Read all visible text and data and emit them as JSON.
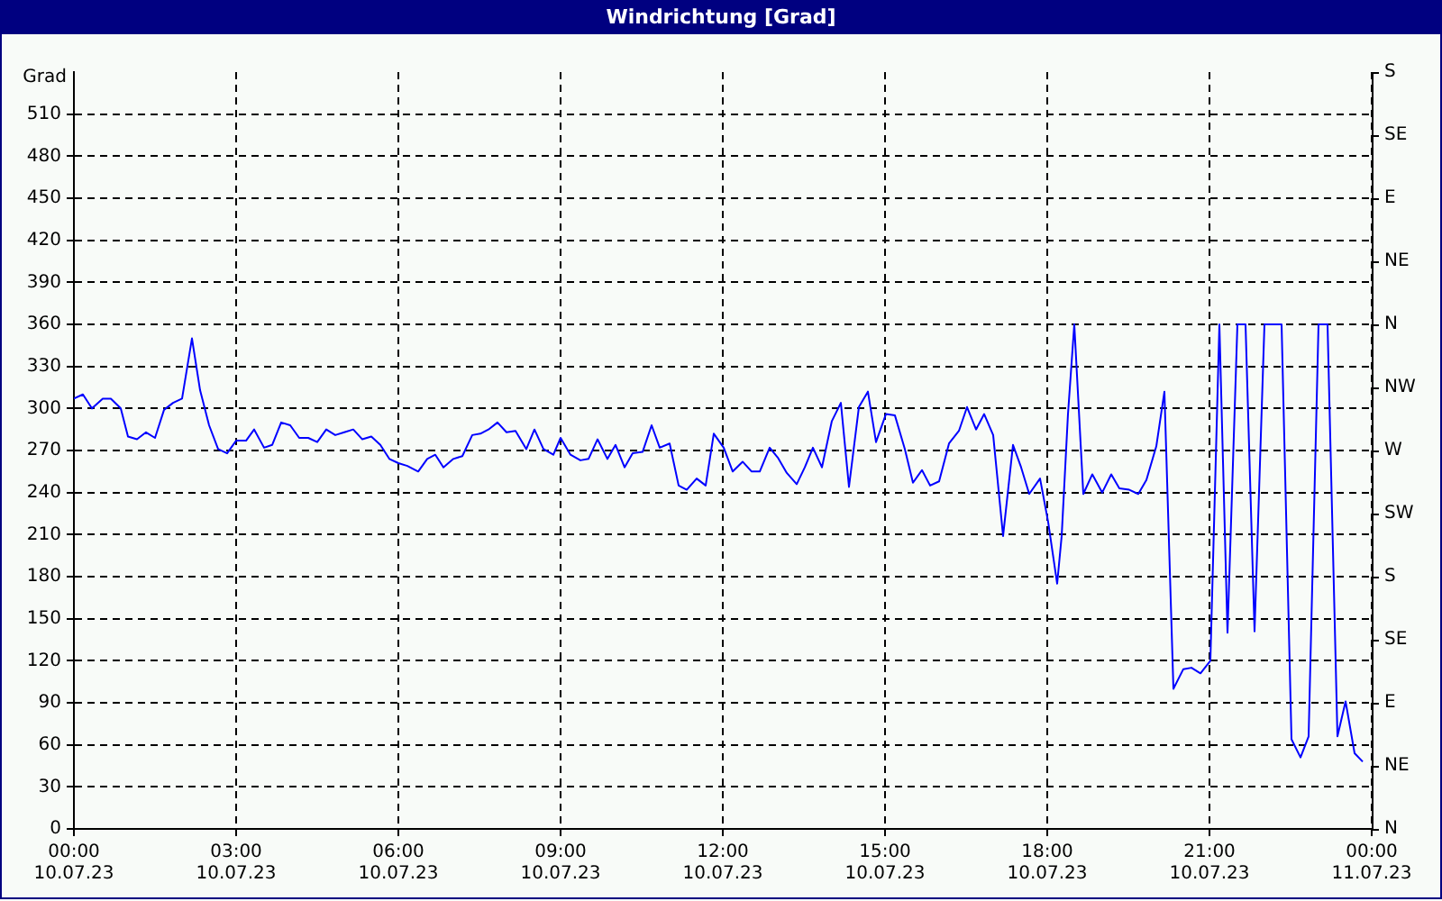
{
  "chart_data": {
    "type": "line",
    "title": "Windrichtung [Grad]",
    "ylabel": "Grad",
    "x": [
      "--07-10T00:00",
      "--07-10T00:10",
      "--07-10T00:20",
      "--07-10T00:32",
      "--07-10T00:41",
      "--07-10T00:52",
      "--07-10T01:00",
      "--07-10T01:10",
      "--07-10T01:20",
      "--07-10T01:30",
      "--07-10T01:40",
      "--07-10T01:50",
      "--07-10T02:00",
      "--07-10T02:11",
      "--07-10T02:20",
      "--07-10T02:30",
      "--07-10T02:40",
      "--07-10T02:50",
      "--07-10T03:00",
      "--07-10T03:11",
      "--07-10T03:20",
      "--07-10T03:31",
      "--07-10T03:40",
      "--07-10T03:50",
      "--07-10T04:00",
      "--07-10T04:10",
      "--07-10T04:20",
      "--07-10T04:30",
      "--07-10T04:40",
      "--07-10T04:50",
      "--07-10T05:00",
      "--07-10T05:10",
      "--07-10T05:20",
      "--07-10T05:30",
      "--07-10T05:40",
      "--07-10T05:50",
      "--07-10T06:00",
      "--07-10T06:10",
      "--07-10T06:22",
      "--07-10T06:32",
      "--07-10T06:41",
      "--07-10T06:50",
      "--07-10T07:01",
      "--07-10T07:11",
      "--07-10T07:22",
      "--07-10T07:31",
      "--07-10T07:40",
      "--07-10T07:50",
      "--07-10T08:00",
      "--07-10T08:10",
      "--07-10T08:22",
      "--07-10T08:31",
      "--07-10T08:41",
      "--07-10T08:52",
      "--07-10T09:00",
      "--07-10T09:11",
      "--07-10T09:22",
      "--07-10T09:31",
      "--07-10T09:41",
      "--07-10T09:52",
      "--07-10T10:01",
      "--07-10T10:11",
      "--07-10T10:20",
      "--07-10T10:31",
      "--07-10T10:41",
      "--07-10T10:50",
      "--07-10T11:01",
      "--07-10T11:11",
      "--07-10T11:20",
      "--07-10T11:31",
      "--07-10T11:41",
      "--07-10T11:50",
      "--07-10T12:01",
      "--07-10T12:11",
      "--07-10T12:22",
      "--07-10T12:32",
      "--07-10T12:41",
      "--07-10T12:52",
      "--07-10T13:01",
      "--07-10T13:11",
      "--07-10T13:22",
      "--07-10T13:31",
      "--07-10T13:40",
      "--07-10T13:50",
      "--07-10T14:01",
      "--07-10T14:11",
      "--07-10T14:20",
      "--07-10T14:31",
      "--07-10T14:41",
      "--07-10T14:50",
      "--07-10T15:01",
      "--07-10T15:11",
      "--07-10T15:22",
      "--07-10T15:31",
      "--07-10T15:41",
      "--07-10T15:50",
      "--07-10T16:00",
      "--07-10T16:11",
      "--07-10T16:22",
      "--07-10T16:31",
      "--07-10T16:41",
      "--07-10T16:50",
      "--07-10T17:00",
      "--07-10T17:11",
      "--07-10T17:22",
      "--07-10T17:31",
      "--07-10T17:40",
      "--07-10T17:52",
      "--07-10T18:01",
      "--07-10T18:11",
      "--07-10T18:16",
      "--07-10T18:23",
      "--07-10T18:30",
      "--07-10T18:40",
      "--07-10T18:50",
      "--07-10T19:01",
      "--07-10T19:11",
      "--07-10T19:20",
      "--07-10T19:31",
      "--07-10T19:41",
      "--07-10T19:50",
      "--07-10T20:01",
      "--07-10T20:10",
      "--07-10T20:20",
      "--07-10T20:31",
      "--07-10T20:40",
      "--07-10T20:50",
      "--07-10T21:01",
      "--07-10T21:11",
      "--07-10T21:20",
      "--07-10T21:31",
      "--07-10T21:40",
      "--07-10T21:50",
      "--07-10T22:01",
      "--07-10T22:11",
      "--07-10T22:20",
      "--07-10T22:31",
      "--07-10T22:41",
      "--07-10T22:50",
      "--07-10T23:01",
      "--07-10T23:11",
      "--07-10T23:22",
      "--07-10T23:31",
      "--07-10T23:41",
      "--07-10T23:50"
    ],
    "series": [
      {
        "color": "#0000ff",
        "values": [
          307,
          310,
          300,
          307,
          307,
          300,
          280,
          278,
          283,
          279,
          299,
          304,
          307,
          350,
          313,
          288,
          271,
          268,
          277,
          277,
          285,
          272,
          274,
          290,
          288,
          279,
          279,
          276,
          285,
          281,
          283,
          285,
          278,
          280,
          274,
          264,
          261,
          259,
          255,
          264,
          267,
          258,
          264,
          266,
          281,
          282,
          285,
          290,
          283,
          284,
          271,
          285,
          271,
          267,
          279,
          267,
          263,
          264,
          278,
          264,
          274,
          258,
          268,
          269,
          288,
          272,
          275,
          245,
          242,
          250,
          245,
          282,
          272,
          255,
          262,
          255,
          255,
          272,
          265,
          254,
          246,
          258,
          272,
          258,
          291,
          304,
          244,
          301,
          312,
          276,
          296,
          295,
          271,
          247,
          256,
          245,
          248,
          275,
          284,
          301,
          285,
          296,
          281,
          209,
          274,
          258,
          239,
          250,
          219,
          175,
          209,
          296,
          360,
          239,
          253,
          240,
          253,
          243,
          242,
          239,
          249,
          273,
          312,
          100,
          114,
          115,
          111,
          120,
          360,
          140,
          360,
          360,
          141,
          360,
          360,
          360,
          64,
          51,
          66,
          360,
          360,
          66,
          91,
          54,
          48
        ]
      }
    ],
    "xlim": [
      "--07-10T00:00",
      "--07-11T00:00"
    ],
    "xticks": [
      {
        "value": "--07-10T00:00",
        "label": "00:00\n10.07.23"
      },
      {
        "value": "--07-10T03:00",
        "label": "03:00\n10.07.23"
      },
      {
        "value": "--07-10T06:00",
        "label": "06:00\n10.07.23"
      },
      {
        "value": "--07-10T09:00",
        "label": "09:00\n10.07.23"
      },
      {
        "value": "--07-10T12:00",
        "label": "12:00\n10.07.23"
      },
      {
        "value": "--07-10T15:00",
        "label": "15:00\n10.07.23"
      },
      {
        "value": "--07-10T18:00",
        "label": "18:00\n10.07.23"
      },
      {
        "value": "--07-10T21:00",
        "label": "21:00\n10.07.23"
      },
      {
        "value": "--07-11T00:00",
        "label": "00:00\n11.07.23"
      }
    ],
    "ylim": [
      0,
      540
    ],
    "yticks": [
      0,
      30,
      60,
      90,
      120,
      150,
      180,
      210,
      240,
      270,
      300,
      330,
      360,
      390,
      420,
      450,
      480,
      510
    ],
    "annotations": [
      "N",
      "NE",
      "E",
      "SE",
      "S",
      "SW",
      "W",
      "NW",
      "N",
      "NE",
      "E",
      "SE",
      "S"
    ],
    "grid": true,
    "marker": "none",
    "line_style": "solid"
  }
}
